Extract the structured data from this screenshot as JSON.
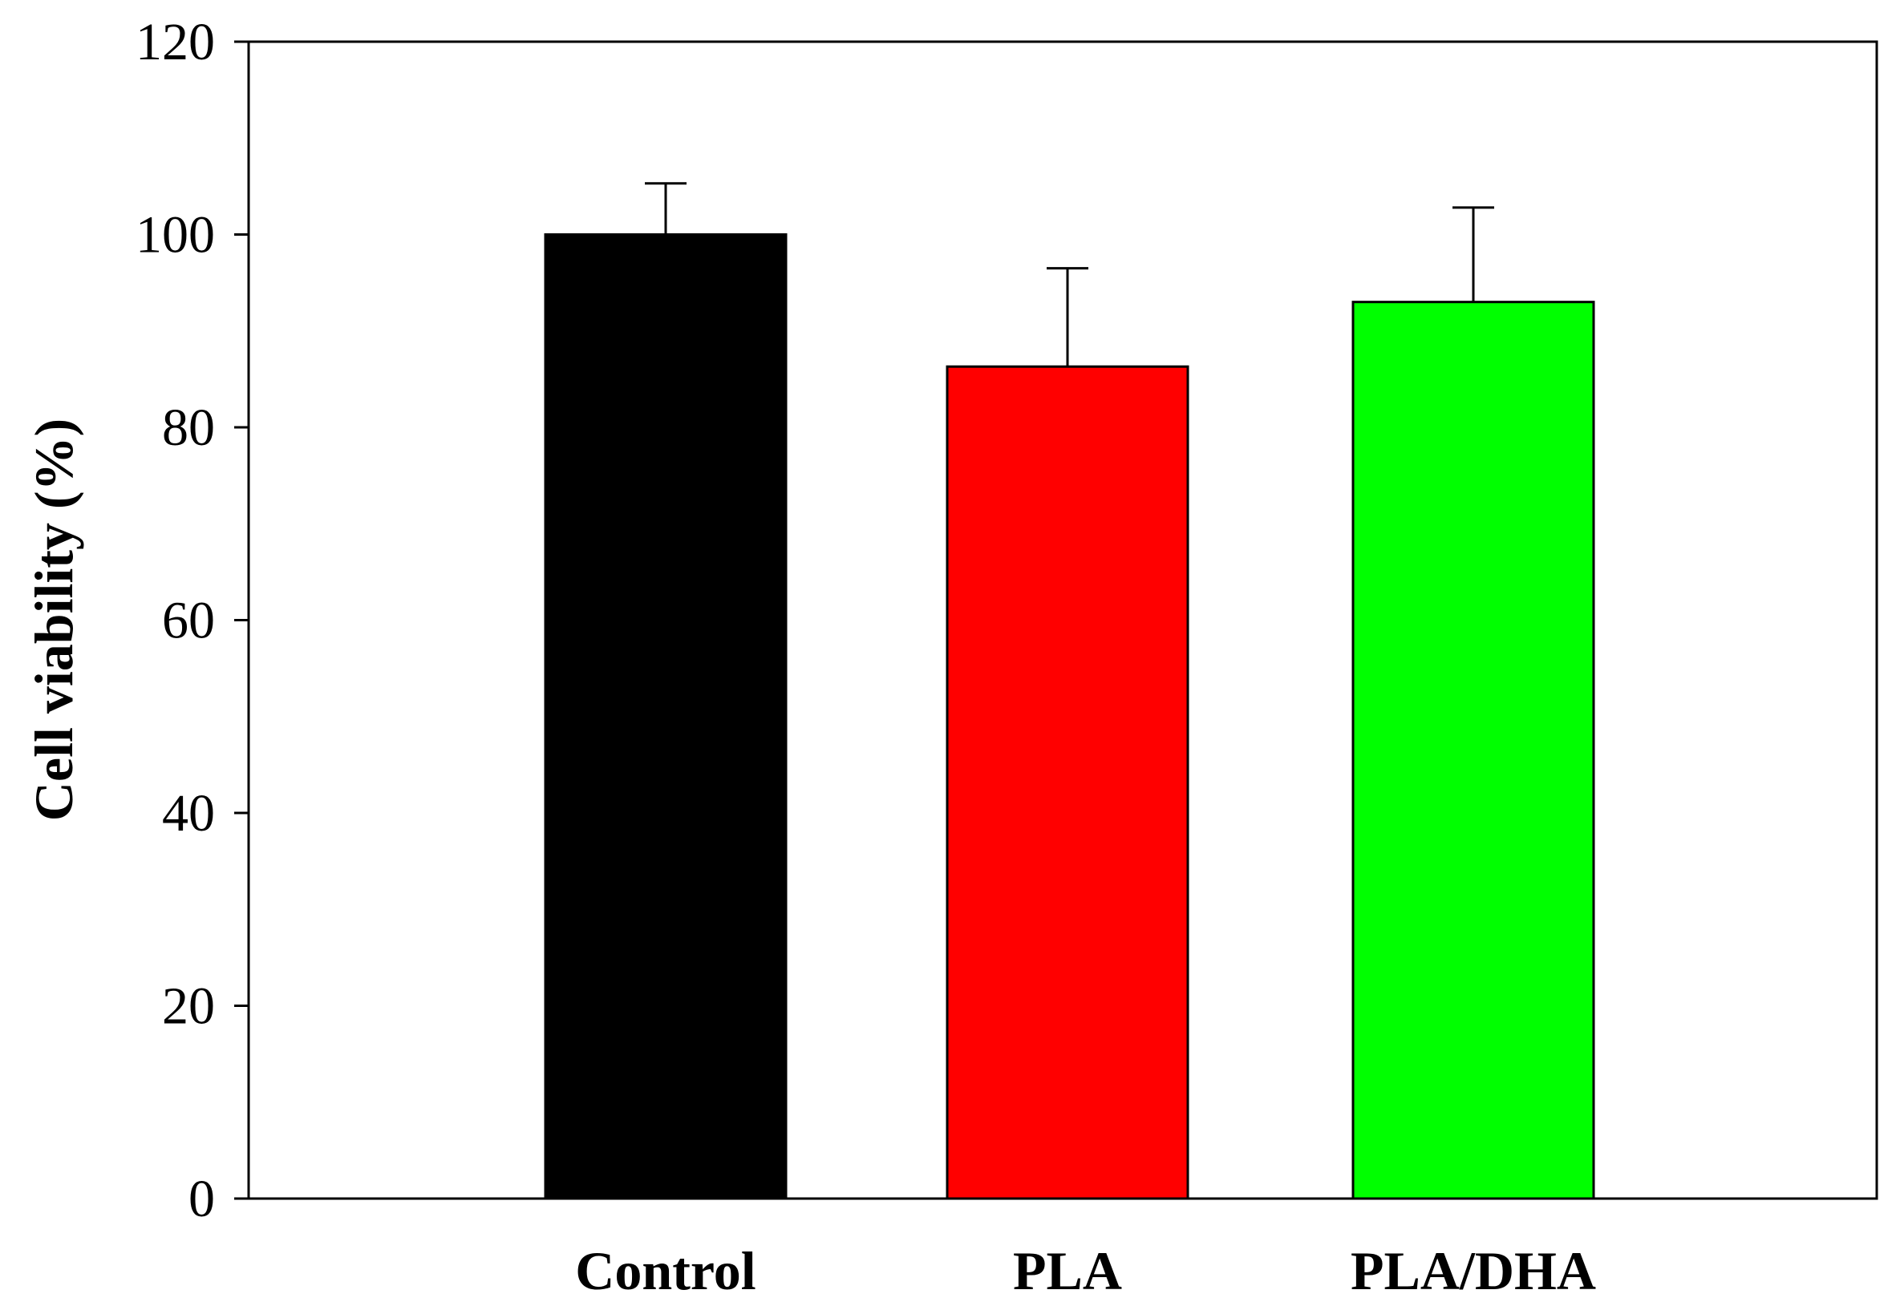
{
  "chart_data": {
    "type": "bar",
    "title": "",
    "xlabel": "",
    "ylabel": "Cell viability (%)",
    "categories": [
      "Control",
      "PLA",
      "PLA/DHA"
    ],
    "series": [
      {
        "values": [
          100.0,
          86.3,
          93.0
        ],
        "errors": [
          5.3,
          10.2,
          9.8
        ],
        "colors": [
          "#000000",
          "#ff0000",
          "#00ff00"
        ]
      }
    ],
    "ylim": [
      0,
      120
    ],
    "yticks": [
      0,
      20,
      40,
      60,
      80,
      100,
      120
    ],
    "grid": false,
    "legend": "none"
  }
}
